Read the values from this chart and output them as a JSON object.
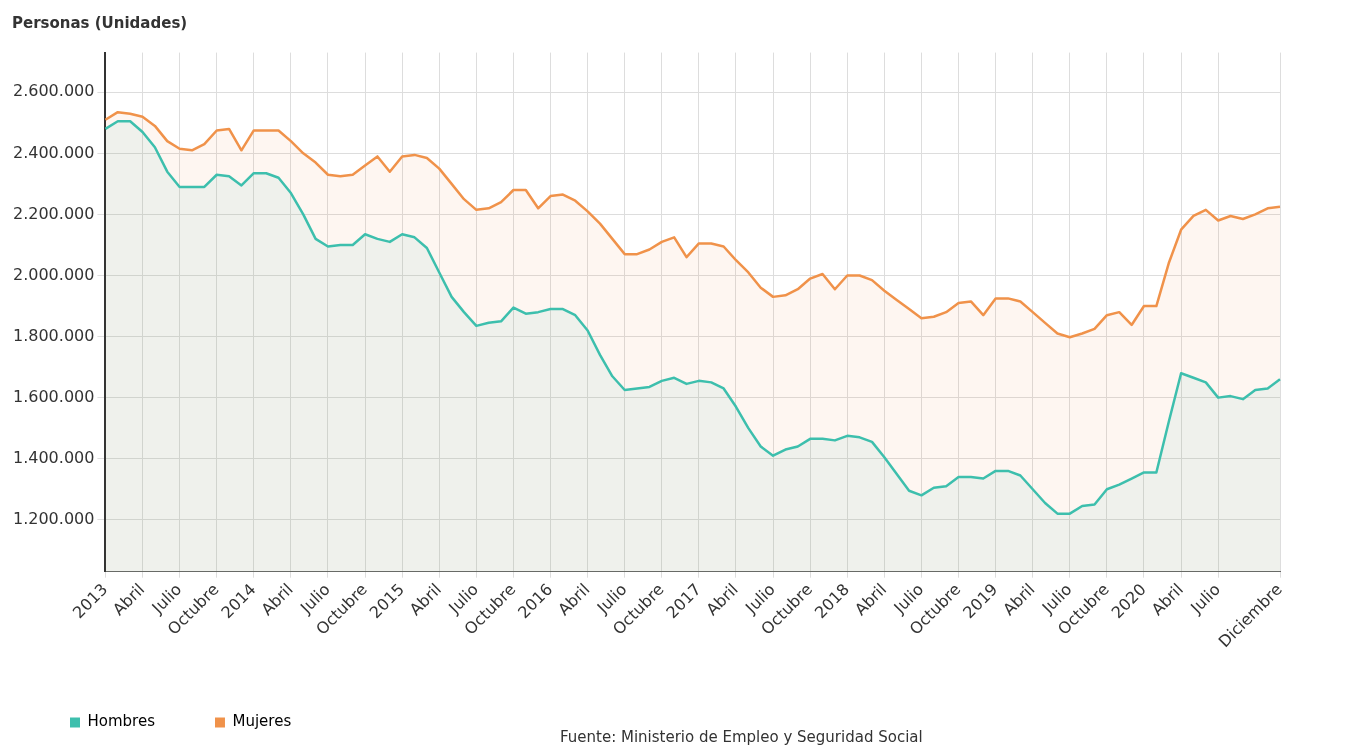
{
  "chart_data": {
    "type": "area",
    "ylabel": "Personas (Unidades)",
    "categories": [
      "2013",
      null,
      null,
      "Abril",
      null,
      null,
      "Julio",
      null,
      null,
      "Octubre",
      null,
      null,
      "2014",
      null,
      null,
      "Abril",
      null,
      null,
      "Julio",
      null,
      null,
      "Octubre",
      null,
      null,
      "2015",
      null,
      null,
      "Abril",
      null,
      null,
      "Julio",
      null,
      null,
      "Octubre",
      null,
      null,
      "2016",
      null,
      null,
      "Abril",
      null,
      null,
      "Julio",
      null,
      null,
      "Octubre",
      null,
      null,
      "2017",
      null,
      null,
      "Abril",
      null,
      null,
      "Julio",
      null,
      null,
      "Octubre",
      null,
      null,
      "2018",
      null,
      null,
      "Abril",
      null,
      null,
      "Julio",
      null,
      null,
      "Octubre",
      null,
      null,
      "2019",
      null,
      null,
      "Abril",
      null,
      null,
      "Julio",
      null,
      null,
      "Octubre",
      null,
      null,
      "2020",
      null,
      null,
      "Abril",
      null,
      null,
      "Julio",
      null,
      null,
      null,
      null,
      "Diciembre"
    ],
    "series": [
      {
        "name": "Hombres",
        "color": "#3dbfad",
        "values": [
          2480000,
          2505000,
          2505000,
          2470000,
          2420000,
          2340000,
          2290000,
          2290000,
          2290000,
          2330000,
          2325000,
          2295000,
          2335000,
          2335000,
          2320000,
          2270000,
          2200000,
          2120000,
          2095000,
          2100000,
          2100000,
          2135000,
          2120000,
          2110000,
          2135000,
          2125000,
          2090000,
          2010000,
          1930000,
          1880000,
          1835000,
          1845000,
          1850000,
          1895000,
          1875000,
          1880000,
          1890000,
          1890000,
          1870000,
          1820000,
          1740000,
          1670000,
          1625000,
          1630000,
          1635000,
          1655000,
          1665000,
          1645000,
          1655000,
          1650000,
          1630000,
          1570000,
          1500000,
          1440000,
          1410000,
          1430000,
          1440000,
          1465000,
          1465000,
          1460000,
          1475000,
          1470000,
          1455000,
          1405000,
          1350000,
          1295000,
          1280000,
          1305000,
          1310000,
          1340000,
          1340000,
          1335000,
          1360000,
          1360000,
          1345000,
          1300000,
          1255000,
          1220000,
          1220000,
          1245000,
          1250000,
          1300000,
          1315000,
          1335000,
          1355000,
          1355000,
          1520000,
          1680000,
          1665000,
          1650000,
          1600000,
          1605000,
          1595000,
          1625000,
          1630000,
          1660000
        ]
      },
      {
        "name": "Mujeres",
        "color": "#f0924a",
        "values": [
          2510000,
          2535000,
          2530000,
          2520000,
          2490000,
          2440000,
          2415000,
          2410000,
          2430000,
          2475000,
          2480000,
          2410000,
          2475000,
          2475000,
          2475000,
          2440000,
          2400000,
          2370000,
          2330000,
          2325000,
          2330000,
          2360000,
          2390000,
          2340000,
          2390000,
          2395000,
          2385000,
          2350000,
          2300000,
          2250000,
          2215000,
          2220000,
          2240000,
          2280000,
          2280000,
          2220000,
          2260000,
          2265000,
          2245000,
          2210000,
          2170000,
          2120000,
          2070000,
          2070000,
          2085000,
          2110000,
          2125000,
          2060000,
          2105000,
          2105000,
          2095000,
          2050000,
          2010000,
          1960000,
          1930000,
          1935000,
          1955000,
          1990000,
          2005000,
          1955000,
          2000000,
          2000000,
          1985000,
          1950000,
          1920000,
          1890000,
          1860000,
          1865000,
          1880000,
          1910000,
          1915000,
          1870000,
          1925000,
          1925000,
          1915000,
          1880000,
          1845000,
          1810000,
          1798000,
          1810000,
          1825000,
          1870000,
          1880000,
          1838000,
          1900000,
          1900000,
          2040000,
          2150000,
          2195000,
          2215000,
          2180000,
          2195000,
          2185000,
          2200000,
          2220000,
          2225000
        ]
      }
    ],
    "ylim": [
      1030000,
      2730000
    ],
    "yticks": [
      {
        "value": 1200000,
        "label": "1.200.000"
      },
      {
        "value": 1400000,
        "label": "1.400.000"
      },
      {
        "value": 1600000,
        "label": "1.600.000"
      },
      {
        "value": 1800000,
        "label": "1.800.000"
      },
      {
        "value": 2000000,
        "label": "2.000.000"
      },
      {
        "value": 2200000,
        "label": "2.200.000"
      },
      {
        "value": 2400000,
        "label": "2.400.000"
      },
      {
        "value": 2600000,
        "label": "2.600.000"
      }
    ],
    "grid": true,
    "legend": "bottom",
    "annotations": [
      "Fuente: Ministerio de Empleo y Seguridad Social"
    ]
  }
}
